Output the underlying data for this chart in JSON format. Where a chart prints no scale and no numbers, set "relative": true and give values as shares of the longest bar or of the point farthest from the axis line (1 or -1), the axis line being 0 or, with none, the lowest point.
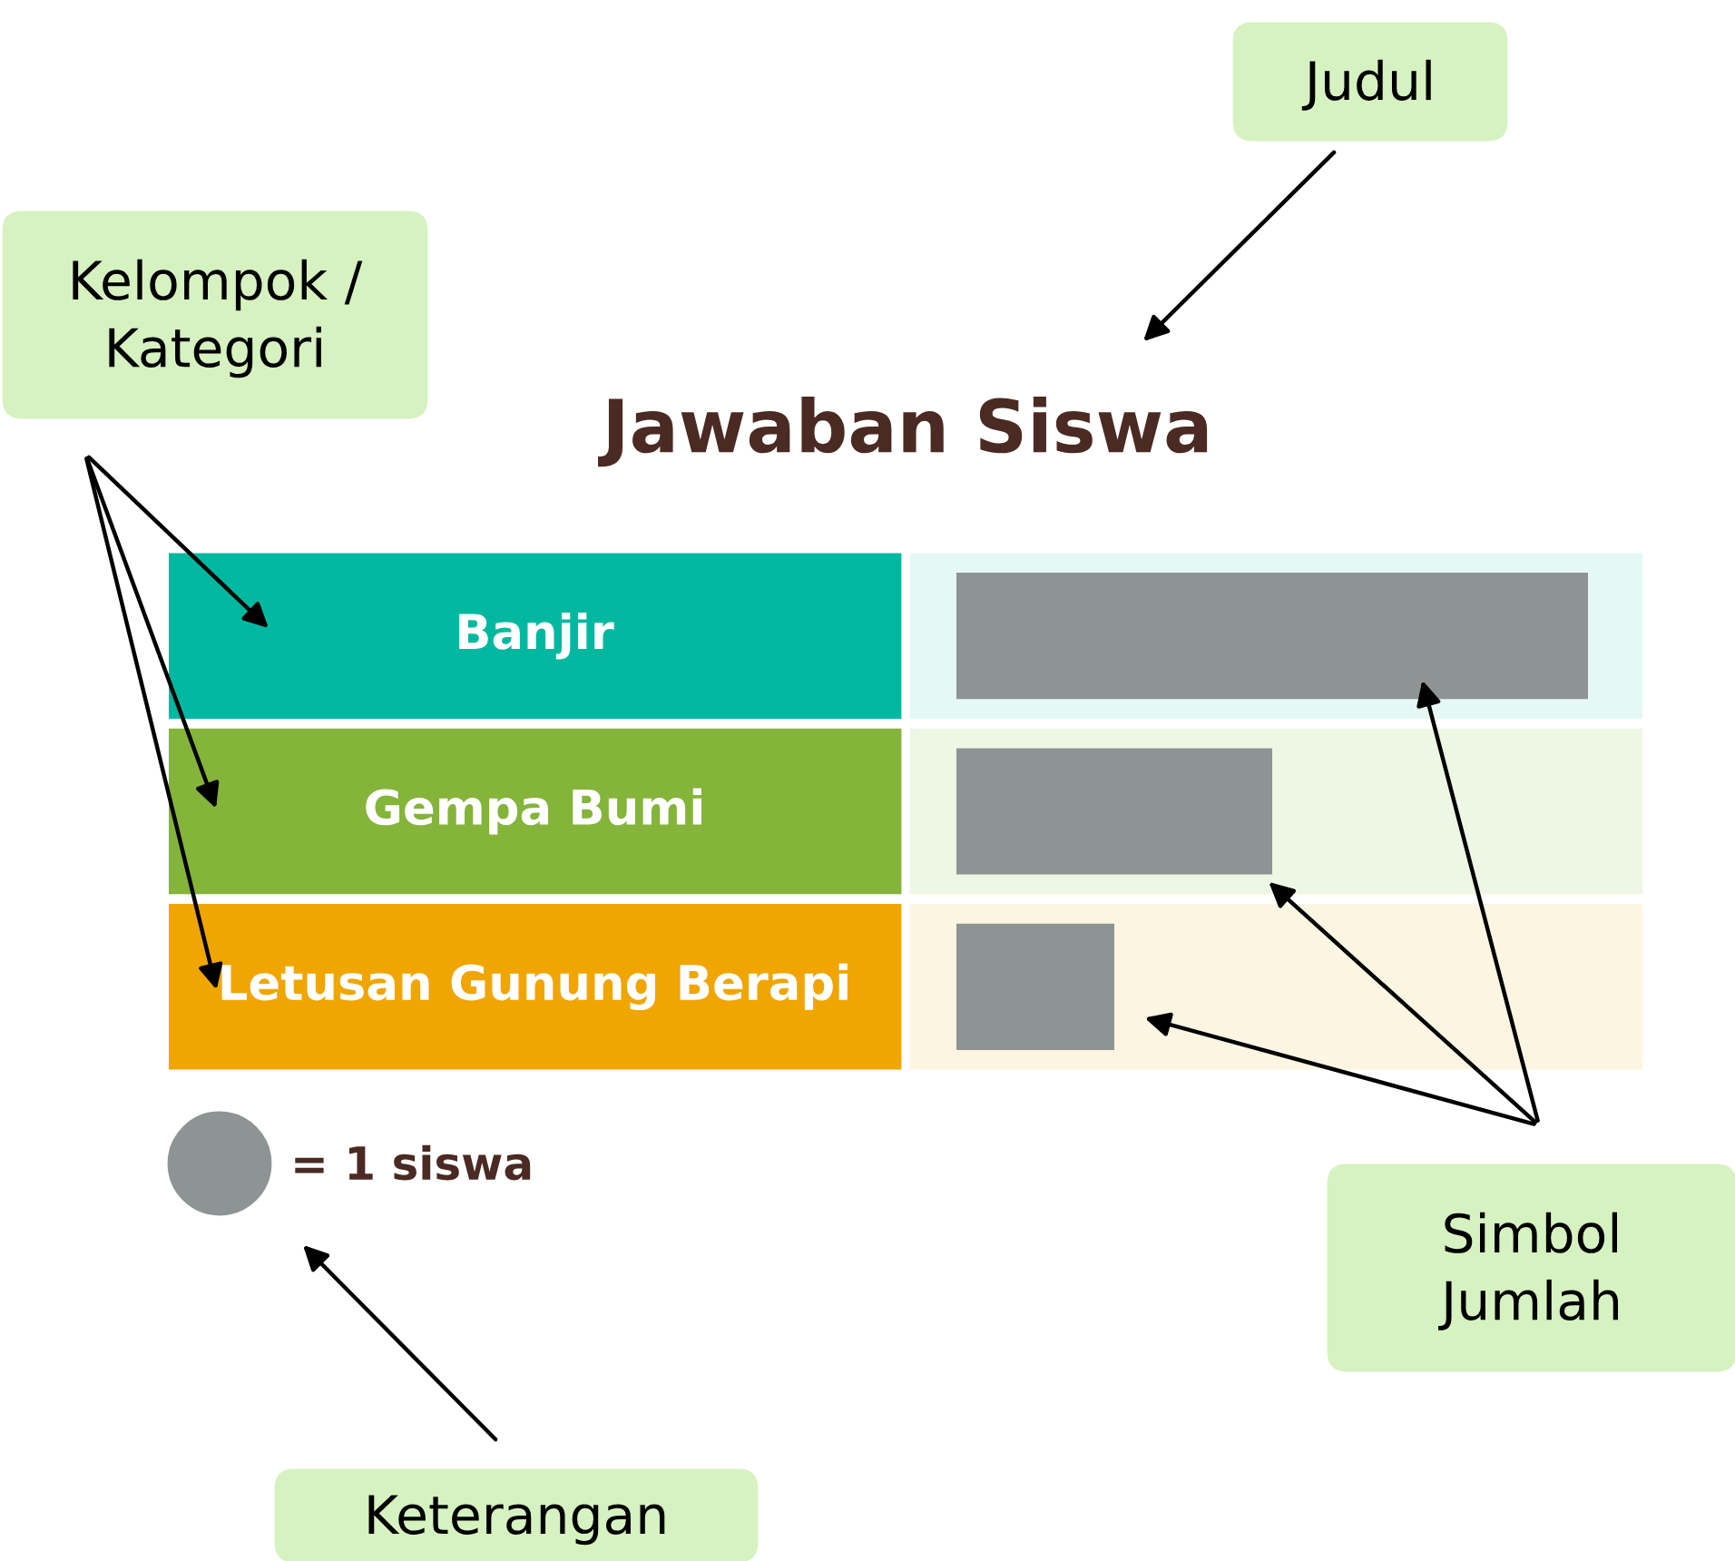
{
  "chart_data": {
    "type": "bar",
    "orientation": "horizontal",
    "relative": true,
    "title": "Jawaban Siswa",
    "categories": [
      "Banjir",
      "Gempa Bumi",
      "Letusan Gunung Berapi"
    ],
    "values": [
      1,
      0.5,
      0.25
    ],
    "color": "#8e9494",
    "annotations": [
      "Judul",
      "Kelompok /\nKategori",
      "Simbol\nJumlah",
      "Keterangan",
      "= 1 siswa"
    ]
  }
}
